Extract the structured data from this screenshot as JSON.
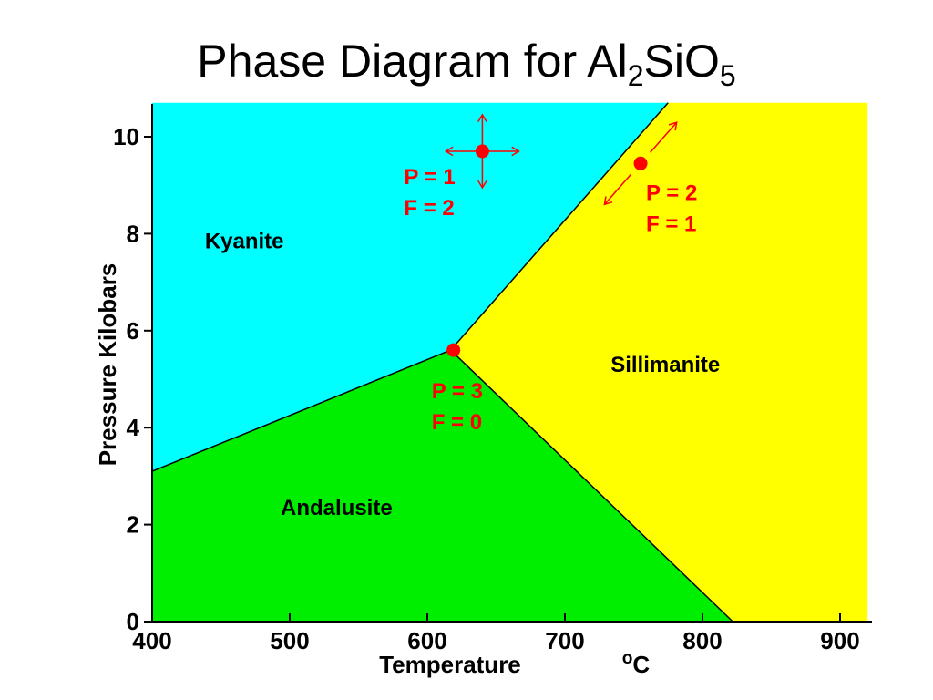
{
  "title": {
    "main": "Phase Diagram for Al",
    "sub1": "2",
    "mid": "SiO",
    "sub2": "5"
  },
  "chart_data": {
    "type": "area",
    "xlabel": "Temperature",
    "xunit": "oC",
    "ylabel": "Pressure Kilobars",
    "xlim": [
      400,
      920
    ],
    "ylim": [
      0,
      10.7
    ],
    "xticks": [
      400,
      500,
      600,
      700,
      800,
      900
    ],
    "yticks": [
      0,
      2,
      4,
      6,
      8,
      10
    ],
    "grid": false,
    "colors": {
      "kyanite": "#00ffff",
      "andalusite": "#00ee00",
      "sillimanite": "#ffff00",
      "points": "#ff0000"
    },
    "boundaries": {
      "kyanite_andalusite": [
        [
          400,
          3.1
        ],
        [
          617,
          5.6
        ]
      ],
      "kyanite_sillimanite": [
        [
          617,
          5.6
        ],
        [
          775,
          10.7
        ]
      ],
      "andalusite_sillimanite": [
        [
          617,
          5.6
        ],
        [
          822,
          0
        ]
      ]
    },
    "regions": [
      {
        "name": "Kyanite",
        "label_at": [
          467,
          7.7
        ]
      },
      {
        "name": "Andalusite",
        "label_at": [
          534,
          2.2
        ]
      },
      {
        "name": "Sillimanite",
        "label_at": [
          773,
          5.15
        ]
      }
    ],
    "points": [
      {
        "x": 640,
        "y": 9.7,
        "arrows": "four-way",
        "lines": [
          "P = 1",
          "F = 2"
        ]
      },
      {
        "x": 755,
        "y": 9.45,
        "arrows": "along-boundary",
        "lines": [
          "P = 2",
          "F = 1"
        ]
      },
      {
        "x": 619,
        "y": 5.6,
        "arrows": "none",
        "lines": [
          "P = 3",
          "F = 0"
        ]
      }
    ]
  }
}
